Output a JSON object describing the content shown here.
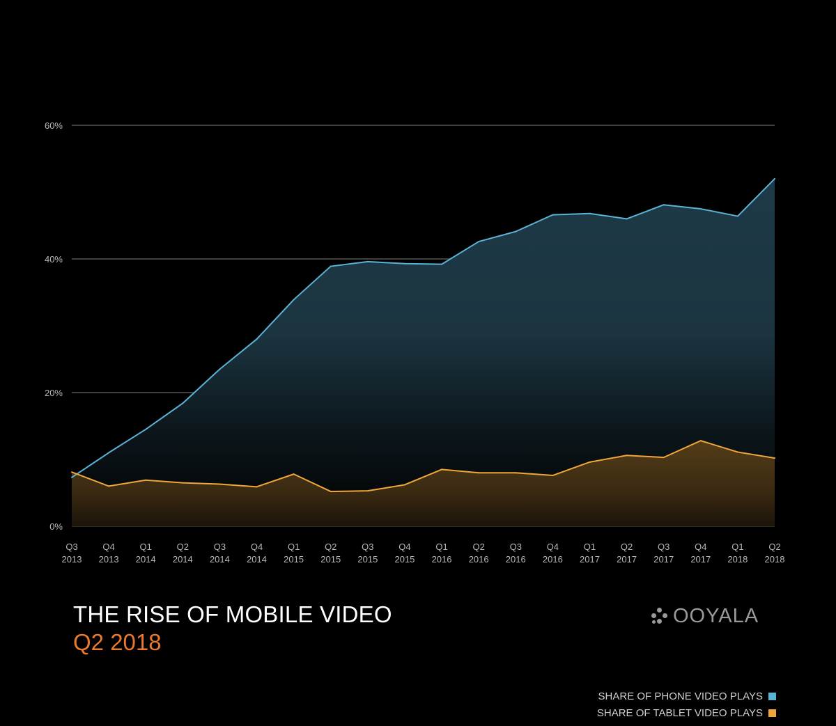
{
  "chart_data": {
    "type": "area",
    "title": "THE RISE OF MOBILE VIDEO",
    "subtitle": "Q2 2018",
    "categories": [
      [
        "Q3",
        "2013"
      ],
      [
        "Q4",
        "2013"
      ],
      [
        "Q1",
        "2014"
      ],
      [
        "Q2",
        "2014"
      ],
      [
        "Q3",
        "2014"
      ],
      [
        "Q4",
        "2014"
      ],
      [
        "Q1",
        "2015"
      ],
      [
        "Q2",
        "2015"
      ],
      [
        "Q3",
        "2015"
      ],
      [
        "Q4",
        "2015"
      ],
      [
        "Q1",
        "2016"
      ],
      [
        "Q2",
        "2016"
      ],
      [
        "Q3",
        "2016"
      ],
      [
        "Q4",
        "2016"
      ],
      [
        "Q1",
        "2017"
      ],
      [
        "Q2",
        "2017"
      ],
      [
        "Q3",
        "2017"
      ],
      [
        "Q4",
        "2017"
      ],
      [
        "Q1",
        "2018"
      ],
      [
        "Q2",
        "2018"
      ]
    ],
    "series": [
      {
        "name": "SHARE OF PHONE VIDEO PLAYS",
        "color": "#5bb3d6",
        "values": [
          7.3,
          11.0,
          14.5,
          18.4,
          23.5,
          28.0,
          33.9,
          38.9,
          39.6,
          39.3,
          39.2,
          42.6,
          44.1,
          46.6,
          46.8,
          46.0,
          48.1,
          47.5,
          46.4,
          52.0
        ]
      },
      {
        "name": "SHARE OF TABLET VIDEO PLAYS",
        "color": "#f0a73a",
        "values": [
          8.1,
          6.0,
          6.9,
          6.5,
          6.3,
          5.9,
          7.8,
          5.2,
          5.3,
          6.2,
          8.5,
          8.0,
          8.0,
          7.6,
          9.6,
          10.6,
          10.3,
          12.8,
          11.1,
          10.2
        ]
      }
    ],
    "ylim": [
      0,
      60
    ],
    "yticks": [
      0,
      20,
      40,
      60
    ],
    "ytick_labels": [
      "0%",
      "20%",
      "40%",
      "60%"
    ],
    "xlabel": "",
    "ylabel": "",
    "grid": true,
    "legend_position": "bottom-right"
  },
  "brand": {
    "logo_text": "OOYALA"
  }
}
